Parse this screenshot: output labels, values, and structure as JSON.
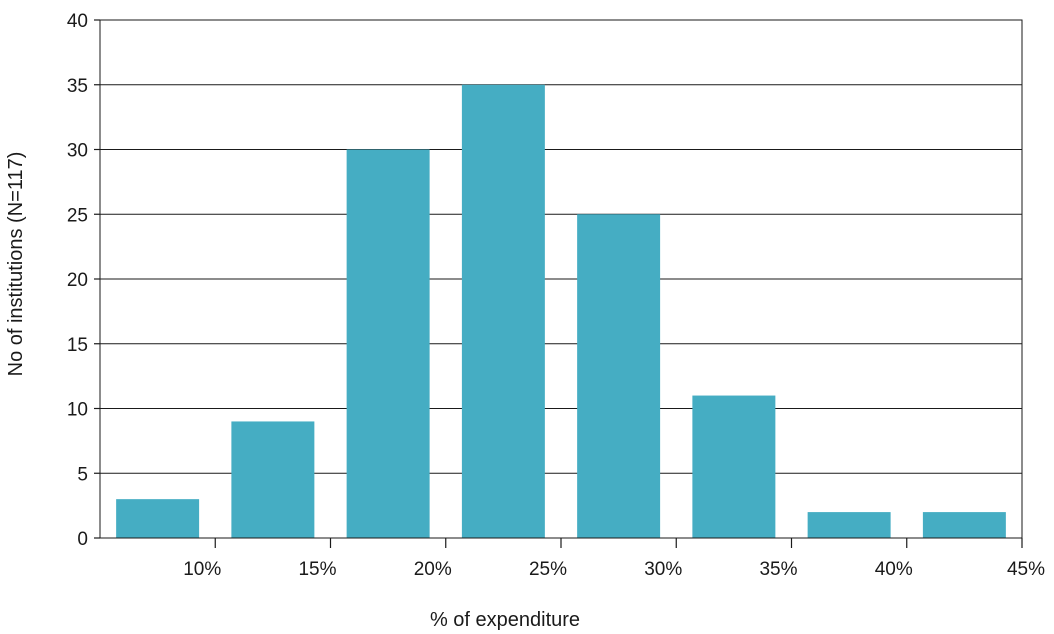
{
  "chart_data": {
    "type": "bar",
    "title": "",
    "xlabel": "% of expenditure",
    "ylabel": "No of institutions (N=117)",
    "x_tick_labels": [
      "10%",
      "15%",
      "20%",
      "25%",
      "30%",
      "35%",
      "40%",
      "45%"
    ],
    "y_tick_labels": [
      "0",
      "5",
      "10",
      "15",
      "20",
      "25",
      "30",
      "35",
      "40"
    ],
    "ylim": [
      0,
      40
    ],
    "grid": true,
    "legend": "none",
    "bar_color": "#45adc3",
    "categories": [
      "5-10%",
      "10-15%",
      "15-20%",
      "20-25%",
      "25-30%",
      "30-35%",
      "35-40%",
      "40-45%"
    ],
    "values": [
      3,
      9,
      30,
      35,
      25,
      11,
      2,
      2
    ]
  }
}
